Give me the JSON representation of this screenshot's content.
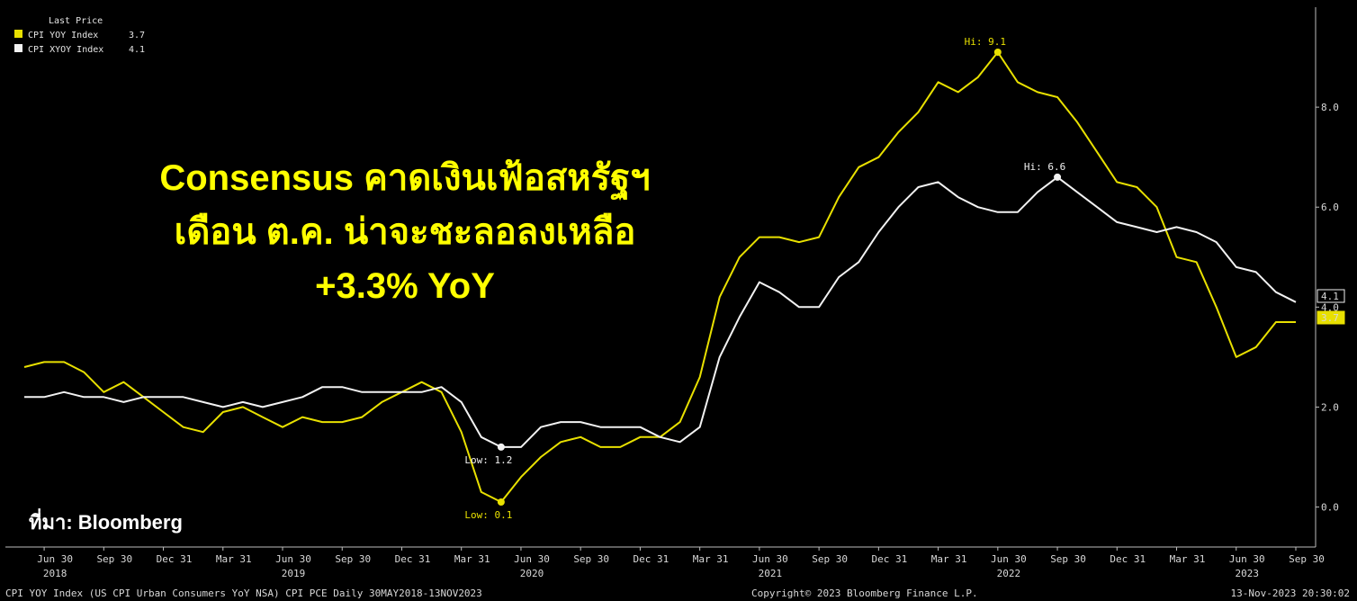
{
  "headline_lines": [
    "Consensus คาดเงินเฟ้อสหรัฐฯ",
    "เดือน ต.ค. น่าจะชะลอลงเหลือ",
    "+3.3% YoY"
  ],
  "source_label": "ที่มา: Bloomberg",
  "footer": {
    "left": "CPI YOY Index (US CPI Urban Consumers YoY NSA) CPI PCE  Daily 30MAY2018-13NOV2023",
    "center": "Copyright© 2023 Bloomberg Finance L.P.",
    "right": "13-Nov-2023 20:30:02"
  },
  "colors": {
    "cpi_yoy": "#e8e000",
    "cpi_xyoy": "#f2f2f2",
    "background": "#000000"
  },
  "chart_data": {
    "type": "line",
    "legend_title": "Last Price",
    "legend_position": "top-left",
    "grid": false,
    "ylim": [
      -0.8,
      10
    ],
    "y_ticks": [
      0.0,
      2.0,
      4.0,
      6.0,
      8.0
    ],
    "y_tick_labels": [
      "0.0",
      "2.0",
      "4.0",
      "6.0",
      "8.0"
    ],
    "x_tick_labels": [
      "Jun 30",
      "Sep 30",
      "Dec 31",
      "Mar 31",
      "Jun 30",
      "Sep 30",
      "Dec 31",
      "Mar 31",
      "Jun 30",
      "Sep 30",
      "Dec 31",
      "Mar 31",
      "Jun 30",
      "Sep 30",
      "Dec 31",
      "Mar 31",
      "Jun 30",
      "Sep 30",
      "Dec 31",
      "Mar 31",
      "Jun 30",
      "Sep 30"
    ],
    "x_year_labels": [
      {
        "label": "2018",
        "tick_index": 0
      },
      {
        "label": "2019",
        "tick_index": 4
      },
      {
        "label": "2020",
        "tick_index": 8
      },
      {
        "label": "2021",
        "tick_index": 12
      },
      {
        "label": "2022",
        "tick_index": 16
      },
      {
        "label": "2023",
        "tick_index": 20
      }
    ],
    "x": [
      "2018-05",
      "2018-06",
      "2018-07",
      "2018-08",
      "2018-09",
      "2018-10",
      "2018-11",
      "2018-12",
      "2019-01",
      "2019-02",
      "2019-03",
      "2019-04",
      "2019-05",
      "2019-06",
      "2019-07",
      "2019-08",
      "2019-09",
      "2019-10",
      "2019-11",
      "2019-12",
      "2020-01",
      "2020-02",
      "2020-03",
      "2020-04",
      "2020-05",
      "2020-06",
      "2020-07",
      "2020-08",
      "2020-09",
      "2020-10",
      "2020-11",
      "2020-12",
      "2021-01",
      "2021-02",
      "2021-03",
      "2021-04",
      "2021-05",
      "2021-06",
      "2021-07",
      "2021-08",
      "2021-09",
      "2021-10",
      "2021-11",
      "2021-12",
      "2022-01",
      "2022-02",
      "2022-03",
      "2022-04",
      "2022-05",
      "2022-06",
      "2022-07",
      "2022-08",
      "2022-09",
      "2022-10",
      "2022-11",
      "2022-12",
      "2023-01",
      "2023-02",
      "2023-03",
      "2023-04",
      "2023-05",
      "2023-06",
      "2023-07",
      "2023-08",
      "2023-09"
    ],
    "series": [
      {
        "name": "CPI YOY Index",
        "last_value": "3.7",
        "values": [
          2.8,
          2.9,
          2.9,
          2.7,
          2.3,
          2.5,
          2.2,
          1.9,
          1.6,
          1.5,
          1.9,
          2.0,
          1.8,
          1.6,
          1.8,
          1.7,
          1.7,
          1.8,
          2.1,
          2.3,
          2.5,
          2.3,
          1.5,
          0.3,
          0.1,
          0.6,
          1.0,
          1.3,
          1.4,
          1.2,
          1.2,
          1.4,
          1.4,
          1.7,
          2.6,
          4.2,
          5.0,
          5.4,
          5.4,
          5.3,
          5.4,
          6.2,
          6.8,
          7.0,
          7.5,
          7.9,
          8.5,
          8.3,
          8.6,
          9.1,
          8.5,
          8.3,
          8.2,
          7.7,
          7.1,
          6.5,
          6.4,
          6.0,
          5.0,
          4.9,
          4.0,
          3.0,
          3.2,
          3.7,
          3.7
        ],
        "annotation": {
          "label": "Hi: 9.1",
          "index": 49,
          "type": "high"
        },
        "annotation_low": {
          "label": "Low: 0.1",
          "index": 24,
          "type": "low"
        }
      },
      {
        "name": "CPI XYOY Index",
        "last_value": "4.1",
        "values": [
          2.2,
          2.2,
          2.3,
          2.2,
          2.2,
          2.1,
          2.2,
          2.2,
          2.2,
          2.1,
          2.0,
          2.1,
          2.0,
          2.1,
          2.2,
          2.4,
          2.4,
          2.3,
          2.3,
          2.3,
          2.3,
          2.4,
          2.1,
          1.4,
          1.2,
          1.2,
          1.6,
          1.7,
          1.7,
          1.6,
          1.6,
          1.6,
          1.4,
          1.3,
          1.6,
          3.0,
          3.8,
          4.5,
          4.3,
          4.0,
          4.0,
          4.6,
          4.9,
          5.5,
          6.0,
          6.4,
          6.5,
          6.2,
          6.0,
          5.9,
          5.9,
          6.3,
          6.6,
          6.3,
          6.0,
          5.7,
          5.6,
          5.5,
          5.6,
          5.5,
          5.3,
          4.8,
          4.7,
          4.3,
          4.1
        ],
        "annotation": {
          "label": "Hi: 6.6",
          "index": 52,
          "type": "high"
        },
        "annotation_low": {
          "label": "Low: 1.2",
          "index": 24,
          "type": "low"
        }
      }
    ]
  }
}
